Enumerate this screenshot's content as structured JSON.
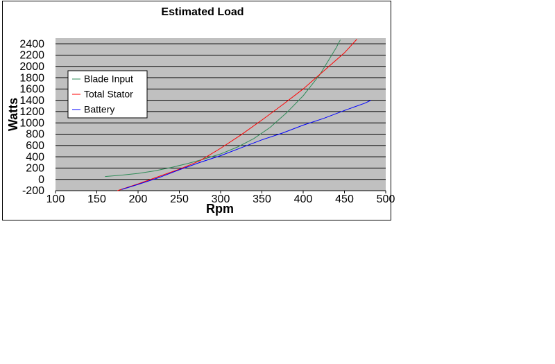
{
  "chart_data": {
    "type": "line",
    "title": "Estimated Load",
    "x_label": "Rpm",
    "y_label": "Watts",
    "xlim": [
      100,
      500
    ],
    "xticks": [
      100,
      150,
      200,
      250,
      300,
      350,
      400,
      450,
      500
    ],
    "ylim": [
      -200,
      2500
    ],
    "yticks": [
      -200,
      0,
      200,
      400,
      600,
      800,
      1000,
      1200,
      1400,
      1600,
      1800,
      2000,
      2200,
      2400
    ],
    "grid": true,
    "legend_position": "left",
    "background": "#c0c0c0",
    "series": [
      {
        "name": "Blade Input",
        "color": "#2e8b57",
        "x": [
          160,
          180,
          200,
          220,
          240,
          260,
          280,
          300,
          320,
          340,
          360,
          380,
          400,
          420,
          440,
          445
        ],
        "values": [
          50,
          75,
          105,
          150,
          210,
          280,
          360,
          450,
          570,
          720,
          920,
          1180,
          1480,
          1850,
          2330,
          2470
        ]
      },
      {
        "name": "Total Stator",
        "color": "#ff0000",
        "x": [
          175,
          200,
          225,
          250,
          275,
          300,
          325,
          350,
          375,
          400,
          425,
          450,
          465
        ],
        "values": [
          -200,
          -80,
          50,
          180,
          330,
          550,
          790,
          1050,
          1320,
          1600,
          1920,
          2240,
          2480
        ]
      },
      {
        "name": "Battery",
        "color": "#0000ff",
        "x": [
          180,
          200,
          225,
          250,
          275,
          300,
          325,
          350,
          375,
          400,
          425,
          450,
          475,
          482
        ],
        "values": [
          -180,
          -90,
          30,
          170,
          300,
          420,
          560,
          700,
          820,
          960,
          1080,
          1220,
          1350,
          1400
        ]
      }
    ]
  }
}
